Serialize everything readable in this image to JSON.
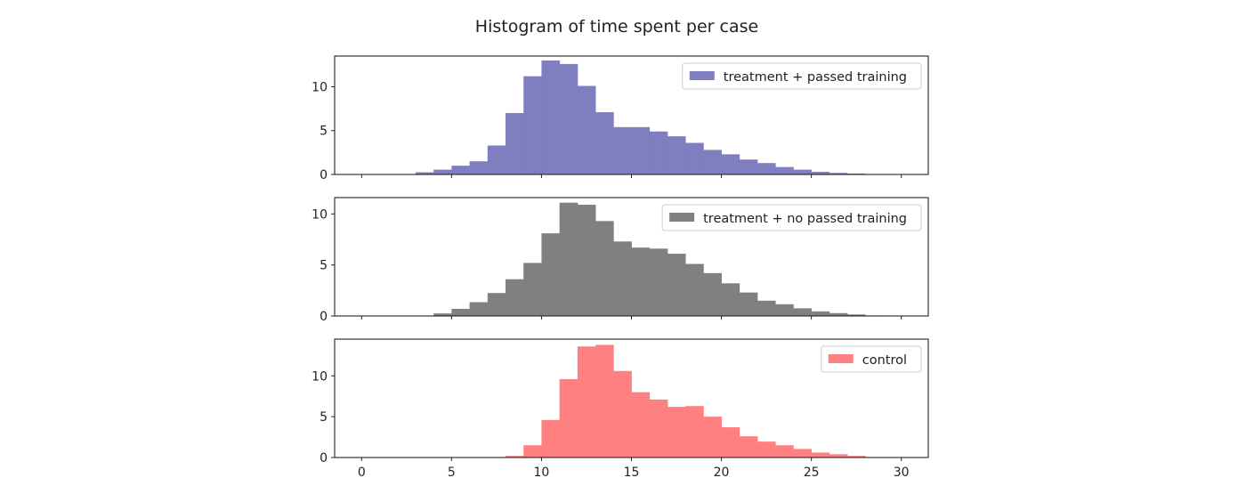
{
  "figure": {
    "title": "Histogram of time spent per case"
  },
  "chart_data": [
    {
      "type": "bar",
      "series": [
        {
          "name": "treatment + passed training",
          "color": "#7f7fbf",
          "bin_start": 0,
          "bin_width": 1,
          "values": [
            0,
            0,
            0,
            0.25,
            0.55,
            1.0,
            1.5,
            3.3,
            7.0,
            11.2,
            13.0,
            12.6,
            10.1,
            7.1,
            5.4,
            5.4,
            4.9,
            4.35,
            3.6,
            2.8,
            2.3,
            1.7,
            1.3,
            0.85,
            0.55,
            0.3,
            0.18,
            0.1,
            0.05,
            0.02,
            0
          ]
        }
      ],
      "xlim": [
        -1.5,
        31.5
      ],
      "ylim": [
        0,
        13.5
      ],
      "x_ticks": [
        0,
        5,
        10,
        15,
        20,
        25,
        30
      ],
      "y_ticks": [
        0,
        5,
        10
      ],
      "show_x_tick_labels": false,
      "legend_position": "upper right"
    },
    {
      "type": "bar",
      "series": [
        {
          "name": "treatment + no passed training",
          "color": "#808080",
          "bin_start": 0,
          "bin_width": 1,
          "values": [
            0,
            0,
            0,
            0,
            0.25,
            0.7,
            1.35,
            2.25,
            3.6,
            5.2,
            8.1,
            11.1,
            10.9,
            9.3,
            7.3,
            6.7,
            6.6,
            6.1,
            5.1,
            4.2,
            3.2,
            2.3,
            1.5,
            1.15,
            0.75,
            0.45,
            0.28,
            0.15,
            0.05,
            0.02,
            0
          ]
        }
      ],
      "xlim": [
        -1.5,
        31.5
      ],
      "ylim": [
        0,
        11.6
      ],
      "x_ticks": [
        0,
        5,
        10,
        15,
        20,
        25,
        30
      ],
      "y_ticks": [
        0,
        5,
        10
      ],
      "show_x_tick_labels": false,
      "legend_position": "upper right"
    },
    {
      "type": "bar",
      "series": [
        {
          "name": "control",
          "color": "#ff8080",
          "bin_start": 0,
          "bin_width": 1,
          "values": [
            0,
            0,
            0,
            0,
            0,
            0,
            0,
            0,
            0.2,
            1.5,
            4.6,
            9.6,
            13.6,
            13.8,
            10.6,
            8.0,
            7.1,
            6.2,
            6.3,
            5.0,
            3.7,
            2.6,
            1.95,
            1.5,
            1.05,
            0.6,
            0.4,
            0.2,
            0.05,
            0.02,
            0
          ]
        }
      ],
      "xlim": [
        -1.5,
        31.5
      ],
      "ylim": [
        0,
        14.5
      ],
      "x_ticks": [
        0,
        5,
        10,
        15,
        20,
        25,
        30
      ],
      "y_ticks": [
        0,
        5,
        10
      ],
      "show_x_tick_labels": true,
      "legend_position": "upper right"
    }
  ]
}
